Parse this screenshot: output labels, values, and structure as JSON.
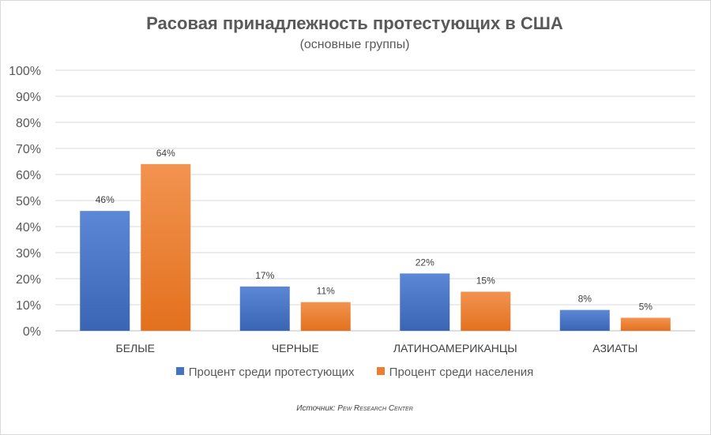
{
  "chart_data": {
    "type": "bar",
    "title": "Расовая принадлежность протестующих в США",
    "subtitle": "(основные группы)",
    "categories": [
      "БЕЛЫЕ",
      "ЧЕРНЫЕ",
      "ЛАТИНОАМЕРИКАНЦЫ",
      "АЗИАТЫ"
    ],
    "series": [
      {
        "name": "Процент среди протестующих",
        "values": [
          46,
          17,
          22,
          8
        ],
        "color": "#4472c4"
      },
      {
        "name": "Процент среди населения",
        "values": [
          64,
          11,
          15,
          5
        ],
        "color": "#ed7d31"
      }
    ],
    "ylim": [
      0,
      100
    ],
    "yticks": [
      "0%",
      "10%",
      "20%",
      "30%",
      "40%",
      "50%",
      "60%",
      "70%",
      "80%",
      "90%",
      "100%"
    ],
    "value_suffix": "%",
    "grid": true,
    "legend_position": "bottom",
    "source_prefix": "Источник:",
    "source_name": "Pew Research Center"
  }
}
